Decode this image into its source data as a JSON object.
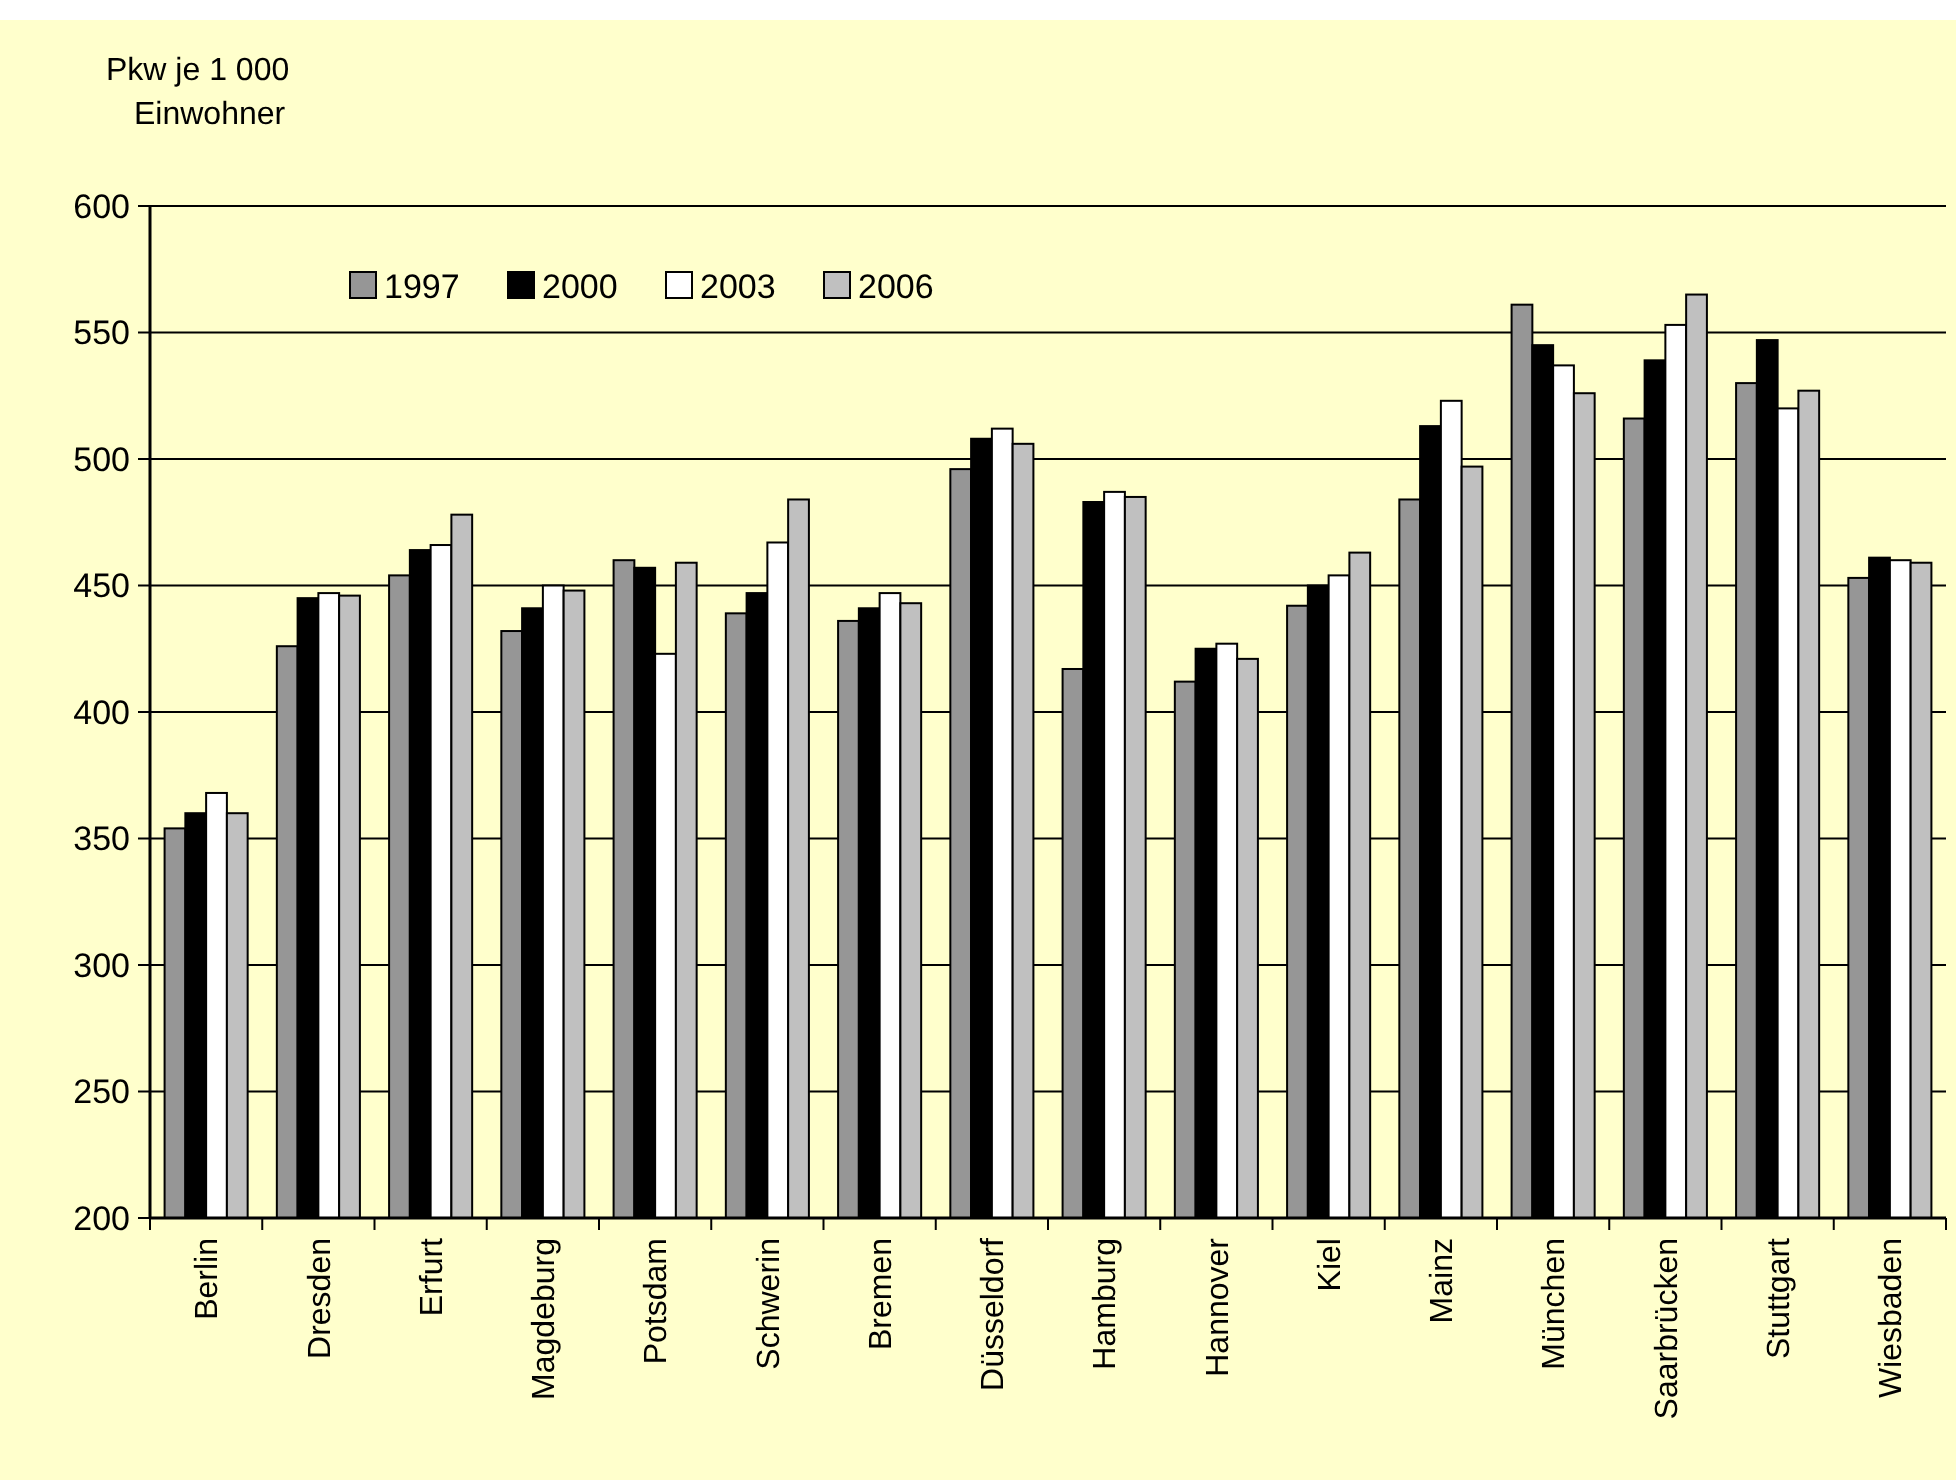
{
  "chart_data": {
    "type": "bar",
    "ylabel": "Pkw je 1 000\nEinwohner",
    "categories": [
      "Berlin",
      "Dresden",
      "Erfurt",
      "Magdeburg",
      "Potsdam",
      "Schwerin",
      "Bremen",
      "Düsseldorf",
      "Hamburg",
      "Hannover",
      "Kiel",
      "Mainz",
      "München",
      "Saarbrücken",
      "Stuttgart",
      "Wiesbaden"
    ],
    "series": [
      {
        "name": "1997",
        "color": "#969696",
        "values": [
          354,
          426,
          454,
          432,
          460,
          439,
          436,
          496,
          417,
          412,
          442,
          484,
          561,
          516,
          530,
          453
        ]
      },
      {
        "name": "2000",
        "color": "#000000",
        "values": [
          360,
          445,
          464,
          441,
          457,
          447,
          441,
          508,
          483,
          425,
          450,
          513,
          545,
          539,
          547,
          461
        ]
      },
      {
        "name": "2003",
        "color": "#ffffff",
        "values": [
          368,
          447,
          466,
          450,
          423,
          467,
          447,
          512,
          487,
          427,
          454,
          523,
          537,
          553,
          520,
          460
        ]
      },
      {
        "name": "2006",
        "color": "#c0c0c0",
        "values": [
          360,
          446,
          478,
          448,
          459,
          484,
          443,
          506,
          485,
          421,
          463,
          497,
          526,
          565,
          527,
          459
        ]
      }
    ],
    "ylim": [
      200,
      600
    ],
    "yticks": [
      200,
      250,
      300,
      350,
      400,
      450,
      500,
      550,
      600
    ],
    "grid": "y",
    "legend": "top left"
  }
}
